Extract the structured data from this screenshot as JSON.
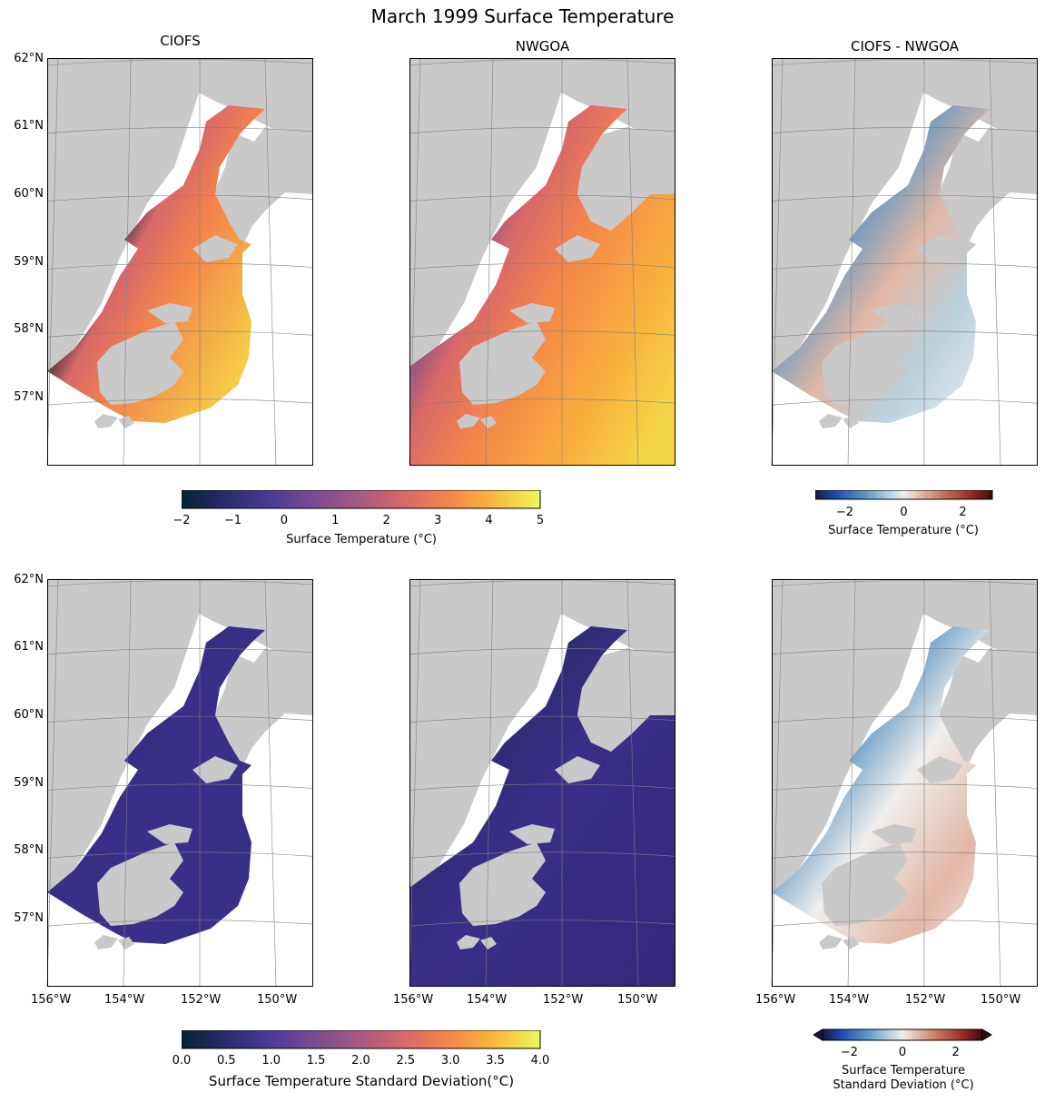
{
  "figure": {
    "title": "March 1999 Surface Temperature",
    "col_titles": [
      "CIOFS",
      "NWGOA",
      "CIOFS - NWGOA"
    ]
  },
  "colors": {
    "land": "#c9c9c9",
    "grid": "#7f7f7f",
    "thermal": [
      "#04232f",
      "#2a2a6c",
      "#4b3a98",
      "#7a4b92",
      "#a95a80",
      "#d8686a",
      "#f4844a",
      "#f9ae3e",
      "#f5d546",
      "#e8fa5b"
    ],
    "diverging": [
      "#1b1444",
      "#1f4cb3",
      "#5d96c3",
      "#b9d2de",
      "#f0eeed",
      "#e2b7a5",
      "#c7765c",
      "#9a2a22",
      "#3c0712"
    ]
  },
  "icons": [
    "thermal-colorbar-icon",
    "diverging-colorbar-icon"
  ],
  "chart_data": [
    {
      "type": "heatmap",
      "panel": "top-left",
      "title": "CIOFS",
      "variable": "surface temperature (°C)",
      "xlim": [
        -156,
        -149
      ],
      "ylim": [
        56,
        62
      ],
      "lat_ticks": [
        "62°N",
        "61°N",
        "60°N",
        "59°N",
        "58°N",
        "57°N"
      ],
      "lon_ticks": [],
      "colormap": "thermal",
      "vmin": -2,
      "vmax": 5
    },
    {
      "type": "heatmap",
      "panel": "top-middle",
      "title": "NWGOA",
      "variable": "surface temperature (°C)",
      "xlim": [
        -156,
        -149
      ],
      "ylim": [
        56,
        62
      ],
      "lat_ticks": [],
      "lon_ticks": [],
      "colormap": "thermal",
      "vmin": -2,
      "vmax": 5
    },
    {
      "type": "heatmap",
      "panel": "top-right",
      "title": "CIOFS - NWGOA",
      "variable": "surface temperature difference (°C)",
      "xlim": [
        -156,
        -149
      ],
      "ylim": [
        56,
        62
      ],
      "lat_ticks": [],
      "lon_ticks": [],
      "colormap": "diverging",
      "vmin": -3,
      "vmax": 3
    },
    {
      "type": "heatmap",
      "panel": "bottom-left",
      "title": "",
      "variable": "surface temperature standard deviation (°C)",
      "xlim": [
        -156,
        -149
      ],
      "ylim": [
        56,
        62
      ],
      "lat_ticks": [
        "62°N",
        "61°N",
        "60°N",
        "59°N",
        "58°N",
        "57°N"
      ],
      "lon_ticks": [
        "156°W",
        "154°W",
        "152°W",
        "150°W"
      ],
      "colormap": "thermal",
      "vmin": 0,
      "vmax": 4
    },
    {
      "type": "heatmap",
      "panel": "bottom-middle",
      "title": "",
      "variable": "surface temperature standard deviation (°C)",
      "xlim": [
        -156,
        -149
      ],
      "ylim": [
        56,
        62
      ],
      "lat_ticks": [],
      "lon_ticks": [
        "156°W",
        "154°W",
        "152°W",
        "150°W"
      ],
      "colormap": "thermal",
      "vmin": 0,
      "vmax": 4
    },
    {
      "type": "heatmap",
      "panel": "bottom-right",
      "title": "",
      "variable": "surface temperature standard deviation difference (°C)",
      "xlim": [
        -156,
        -149
      ],
      "ylim": [
        56,
        62
      ],
      "lat_ticks": [],
      "lon_ticks": [
        "156°W",
        "154°W",
        "152°W",
        "150°W"
      ],
      "colormap": "diverging",
      "vmin": -3,
      "vmax": 3,
      "extend": "both"
    }
  ],
  "colorbars": {
    "temp": {
      "label": "Surface Temperature (°C)",
      "min": -2,
      "max": 5,
      "ticks": [
        "−2",
        "−1",
        "0",
        "1",
        "2",
        "3",
        "4",
        "5"
      ]
    },
    "diff": {
      "label": "Surface Temperature (°C)",
      "min": -3,
      "max": 3,
      "ticks": [
        "−2",
        "0",
        "2"
      ]
    },
    "std": {
      "label": "Surface Temperature Standard Deviation(°C)",
      "min": 0,
      "max": 4,
      "ticks": [
        "0.0",
        "0.5",
        "1.0",
        "1.5",
        "2.0",
        "2.5",
        "3.0",
        "3.5",
        "4.0"
      ]
    },
    "stddiff": {
      "label_line1": "Surface Temperature",
      "label_line2": "Standard Deviation (°C)",
      "min": -3,
      "max": 3,
      "ticks": [
        "−2",
        "0",
        "2"
      ]
    }
  }
}
